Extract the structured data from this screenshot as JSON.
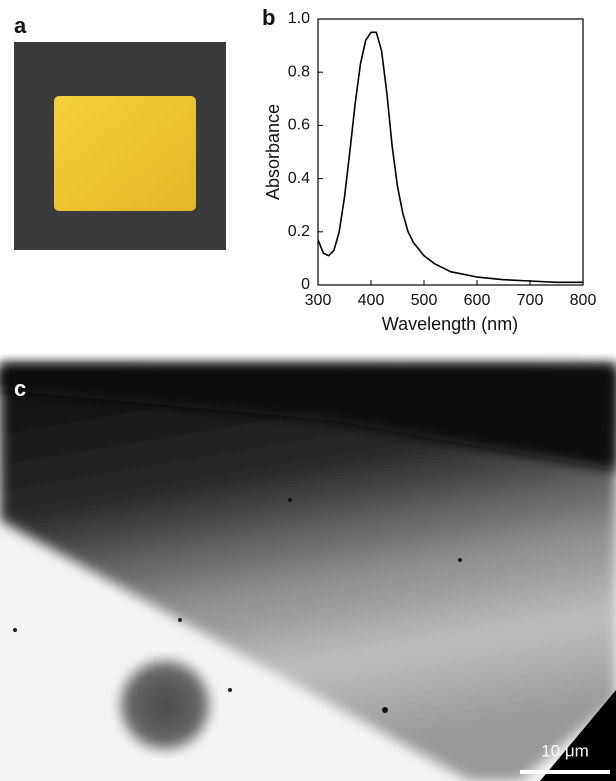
{
  "panel_labels": [
    "a",
    "b",
    "c"
  ],
  "scale_bar": "10 μm",
  "chart_data": {
    "type": "line",
    "x_label": "Wavelength (nm)",
    "y_label": "Absorbance",
    "x": [
      300,
      310,
      320,
      330,
      340,
      350,
      360,
      370,
      380,
      390,
      400,
      410,
      420,
      430,
      440,
      450,
      460,
      470,
      480,
      500,
      520,
      550,
      600,
      650,
      700,
      750,
      800
    ],
    "values": [
      0.17,
      0.12,
      0.11,
      0.13,
      0.2,
      0.33,
      0.5,
      0.68,
      0.83,
      0.92,
      0.95,
      0.95,
      0.88,
      0.72,
      0.52,
      0.37,
      0.27,
      0.2,
      0.16,
      0.11,
      0.08,
      0.05,
      0.03,
      0.02,
      0.015,
      0.01,
      0.01
    ],
    "color": "#000000",
    "xlim": [
      300,
      800
    ],
    "xticks": [
      300,
      400,
      500,
      600,
      700,
      800
    ],
    "ylim": [
      0,
      1
    ],
    "yticks": [
      0,
      0.2,
      0.4,
      0.6,
      0.8,
      {
        "value": 1,
        "label": "1.0"
      }
    ]
  }
}
